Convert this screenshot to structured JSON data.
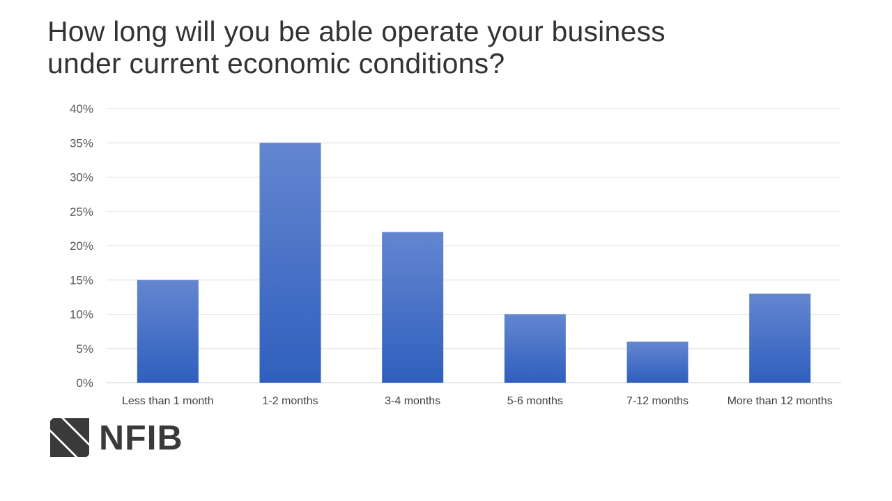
{
  "title_lines": [
    "How long will you be able operate your business",
    "under current economic conditions?"
  ],
  "logo_text": "NFIB",
  "bar_color": "#3a66c4",
  "chart_data": {
    "type": "bar",
    "categories": [
      "Less than 1 month",
      "1-2 months",
      "3-4 months",
      "5-6 months",
      "7-12 months",
      "More than 12 months"
    ],
    "values": [
      15,
      35,
      22,
      10,
      6,
      13
    ],
    "y_unit": "%",
    "ylim": [
      0,
      40
    ],
    "yticks": [
      0,
      5,
      10,
      15,
      20,
      25,
      30,
      35,
      40
    ],
    "grid": true,
    "legend": "none"
  }
}
